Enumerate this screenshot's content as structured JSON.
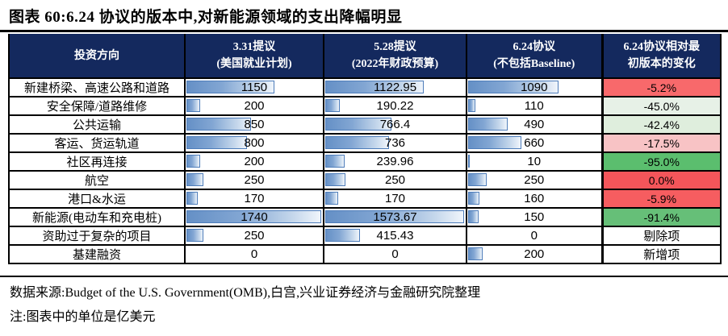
{
  "title": "图表 60:6.24 协议的版本中,对新能源领域的支出降幅明显",
  "source": "数据来源:Budget of the U.S. Government(OMB),白宫,兴业证券经济与金融研究院整理",
  "note": "注:图表中的单位是亿美元",
  "colors": {
    "header_bg": "#14295E",
    "header_text": "#FFFFFF",
    "bar_border": "#4E7DBA",
    "bar_fill_start": "#6590C6",
    "bar_fill_end": "#F0F5FB",
    "strong_red": "#F4555A",
    "strong_green": "#5BBE6E"
  },
  "chart_data": {
    "type": "table",
    "title": "图表 60:6.24 协议的版本中,对新能源领域的支出降幅明显",
    "unit": "亿美元",
    "legend_note": "数据条长度与数值成正比;最后一列红色表示降幅小、绿色表示降幅大",
    "columns": [
      {
        "label": "投资方向",
        "sublabel": ""
      },
      {
        "label": "3.31提议",
        "sublabel": "(美国就业计划)",
        "bar_scale_max": 1740
      },
      {
        "label": "5.28提议",
        "sublabel": "(2022年财政预算)",
        "bar_scale_max": 1573.67
      },
      {
        "label": "6.24协议",
        "sublabel": "(不包括Baseline)",
        "bar_scale_max": 1573.67
      },
      {
        "label": "6.24协议相对最",
        "sublabel": "初版本的变化"
      }
    ],
    "rows": [
      {
        "name": "新建桥梁、高速公路和道路",
        "values": [
          1150,
          1122.95,
          1090
        ],
        "change": "-5.2%",
        "change_bg": "#F8696B",
        "change_cjk": false
      },
      {
        "name": "安全保障/道路维修",
        "values": [
          200,
          190.22,
          110
        ],
        "change": "-45.0%",
        "change_bg": "#E7F1E7",
        "change_cjk": false
      },
      {
        "name": "公共运输",
        "values": [
          850,
          766.4,
          490
        ],
        "change": "-42.4%",
        "change_bg": "#DFEEDD",
        "change_cjk": false
      },
      {
        "name": "客运、货运轨道",
        "values": [
          800,
          736,
          660
        ],
        "change": "-17.5%",
        "change_bg": "#F8C3C5",
        "change_cjk": false
      },
      {
        "name": "社区再连接",
        "values": [
          200,
          239.96,
          10
        ],
        "change": "-95.0%",
        "change_bg": "#5BBE6E",
        "change_cjk": false
      },
      {
        "name": "航空",
        "values": [
          250,
          250,
          250
        ],
        "change": "0.0%",
        "change_bg": "#F4555A",
        "change_cjk": false
      },
      {
        "name": "港口&水运",
        "values": [
          170,
          170,
          160
        ],
        "change": "-5.9%",
        "change_bg": "#F65D60",
        "change_cjk": false
      },
      {
        "name": "新能源(电动车和充电桩)",
        "values": [
          1740,
          1573.67,
          150
        ],
        "change": "-91.4%",
        "change_bg": "#66BF78",
        "change_cjk": false
      },
      {
        "name": "资助过于复杂的项目",
        "values": [
          250,
          415.43,
          0
        ],
        "change": "剔除项",
        "change_bg": "#FFFFFF",
        "change_cjk": true
      },
      {
        "name": "基建融资",
        "values": [
          0,
          0,
          200
        ],
        "change": "新增项",
        "change_bg": "#FFFFFF",
        "change_cjk": true
      }
    ]
  }
}
